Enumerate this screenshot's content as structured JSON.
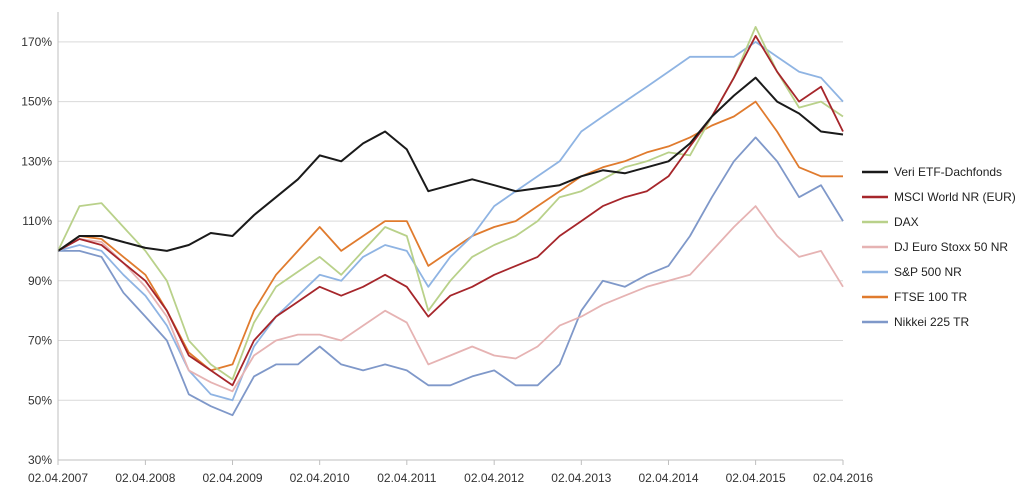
{
  "chart_data": {
    "type": "line",
    "title": "",
    "xlabel": "",
    "ylabel": "",
    "ylim": [
      30,
      180
    ],
    "yticks": [
      30,
      50,
      70,
      90,
      110,
      130,
      150,
      170
    ],
    "ytick_labels": [
      "30%",
      "50%",
      "70%",
      "90%",
      "110%",
      "130%",
      "150%",
      "170%"
    ],
    "xlim": [
      "02.04.2007",
      "02.04.2016"
    ],
    "xtick_labels": [
      "02.04.2007",
      "02.04.2008",
      "02.04.2009",
      "02.04.2010",
      "02.04.2011",
      "02.04.2012",
      "02.04.2013",
      "02.04.2014",
      "02.04.2015",
      "02.04.2016"
    ],
    "grid": "horizontal",
    "legend_position": "right",
    "x": [
      "02.04.2007",
      "01.07.2007",
      "01.10.2007",
      "01.01.2008",
      "02.04.2008",
      "01.07.2008",
      "01.10.2008",
      "01.01.2009",
      "02.04.2009",
      "01.07.2009",
      "01.10.2009",
      "01.01.2010",
      "02.04.2010",
      "01.07.2010",
      "01.10.2010",
      "01.01.2011",
      "02.04.2011",
      "01.07.2011",
      "01.10.2011",
      "01.01.2012",
      "02.04.2012",
      "01.07.2012",
      "01.10.2012",
      "01.01.2013",
      "02.04.2013",
      "01.07.2013",
      "01.10.2013",
      "01.01.2014",
      "02.04.2014",
      "01.07.2014",
      "01.10.2014",
      "01.01.2015",
      "02.04.2015",
      "01.07.2015",
      "01.10.2015",
      "01.01.2016",
      "02.04.2016"
    ],
    "series": [
      {
        "name": "Veri ETF-Dachfonds",
        "color": "#1a1a1a",
        "values": [
          100,
          105,
          105,
          103,
          101,
          100,
          102,
          106,
          105,
          112,
          118,
          124,
          132,
          130,
          136,
          140,
          134,
          120,
          122,
          124,
          122,
          120,
          121,
          122,
          125,
          127,
          126,
          128,
          130,
          136,
          145,
          152,
          158,
          150,
          146,
          140,
          139
        ]
      },
      {
        "name": "MSCI World NR (EUR)",
        "color": "#a6262b",
        "values": [
          100,
          104,
          102,
          96,
          90,
          80,
          65,
          60,
          55,
          70,
          78,
          83,
          88,
          85,
          88,
          92,
          88,
          78,
          85,
          88,
          92,
          95,
          98,
          105,
          110,
          115,
          118,
          120,
          125,
          135,
          145,
          158,
          172,
          160,
          150,
          155,
          140
        ]
      },
      {
        "name": "DAX",
        "color": "#b9d18a",
        "values": [
          100,
          115,
          116,
          108,
          100,
          90,
          70,
          62,
          57,
          76,
          88,
          93,
          98,
          92,
          100,
          108,
          105,
          80,
          90,
          98,
          102,
          105,
          110,
          118,
          120,
          124,
          128,
          130,
          133,
          132,
          145,
          158,
          175,
          160,
          148,
          150,
          145
        ]
      },
      {
        "name": "DJ Euro Stoxx 50 NR",
        "color": "#e6b3b3",
        "values": [
          100,
          104,
          103,
          96,
          88,
          78,
          60,
          56,
          53,
          65,
          70,
          72,
          72,
          70,
          75,
          80,
          76,
          62,
          65,
          68,
          65,
          64,
          68,
          75,
          78,
          82,
          85,
          88,
          90,
          92,
          100,
          108,
          115,
          105,
          98,
          100,
          88
        ]
      },
      {
        "name": "S&P 500 NR",
        "color": "#8fb4e3",
        "values": [
          100,
          102,
          100,
          92,
          85,
          75,
          60,
          52,
          50,
          68,
          78,
          85,
          92,
          90,
          98,
          102,
          100,
          88,
          98,
          105,
          115,
          120,
          125,
          130,
          140,
          145,
          150,
          155,
          160,
          165,
          165,
          165,
          170,
          165,
          160,
          158,
          150
        ]
      },
      {
        "name": "FTSE 100 TR",
        "color": "#e07b2e",
        "values": [
          100,
          105,
          104,
          98,
          92,
          80,
          66,
          60,
          62,
          80,
          92,
          100,
          108,
          100,
          105,
          110,
          110,
          95,
          100,
          105,
          108,
          110,
          115,
          120,
          125,
          128,
          130,
          133,
          135,
          138,
          142,
          145,
          150,
          140,
          128,
          125,
          125
        ]
      },
      {
        "name": "Nikkei 225 TR",
        "color": "#7f98c9",
        "values": [
          100,
          100,
          98,
          86,
          78,
          70,
          52,
          48,
          45,
          58,
          62,
          62,
          68,
          62,
          60,
          62,
          60,
          55,
          55,
          58,
          60,
          55,
          55,
          62,
          80,
          90,
          88,
          92,
          95,
          105,
          118,
          130,
          138,
          130,
          118,
          122,
          110
        ]
      }
    ]
  }
}
